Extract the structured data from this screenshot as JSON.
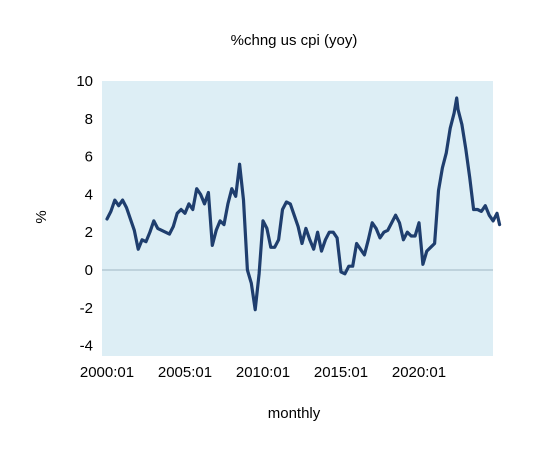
{
  "chart_data": {
    "type": "line",
    "title": "%chng us cpi (yoy)",
    "xlabel": "monthly",
    "ylabel": "%",
    "ylim": [
      -4.5,
      10
    ],
    "xlim": [
      "2000:01",
      "2025:03"
    ],
    "y_ticks": [
      "10",
      "8",
      "6",
      "4",
      "2",
      "0",
      "-2",
      "-4"
    ],
    "x_ticks": [
      "2000:01",
      "2005:01",
      "2010:01",
      "2015:01",
      "2020:01"
    ],
    "grid": false,
    "legend": "none",
    "background_color": "#ddeef5",
    "line_color": "#1f3e6e",
    "zero_line_color": "#9fb6c2",
    "series": [
      {
        "x": [
          "2000:01",
          "2000:04",
          "2000:07",
          "2000:10",
          "2001:01",
          "2001:04",
          "2001:07",
          "2001:10",
          "2002:01",
          "2002:04",
          "2002:07",
          "2002:10",
          "2003:01",
          "2003:04",
          "2003:07",
          "2003:10",
          "2004:01",
          "2004:04",
          "2004:07",
          "2004:10",
          "2005:01",
          "2005:04",
          "2005:07",
          "2005:10",
          "2006:01",
          "2006:04",
          "2006:07",
          "2006:10",
          "2007:01",
          "2007:04",
          "2007:07",
          "2007:10",
          "2008:01",
          "2008:04",
          "2008:07",
          "2008:10",
          "2009:01",
          "2009:04",
          "2009:07",
          "2009:10",
          "2010:01",
          "2010:04",
          "2010:07",
          "2010:10",
          "2011:01",
          "2011:04",
          "2011:07",
          "2011:10",
          "2012:01",
          "2012:04",
          "2012:07",
          "2012:10",
          "2013:01",
          "2013:04",
          "2013:07",
          "2013:10",
          "2014:01",
          "2014:04",
          "2014:07",
          "2014:10",
          "2015:01",
          "2015:04",
          "2015:07",
          "2015:10",
          "2016:01",
          "2016:04",
          "2016:07",
          "2016:10",
          "2017:01",
          "2017:04",
          "2017:07",
          "2017:10",
          "2018:01",
          "2018:04",
          "2018:07",
          "2018:10",
          "2019:01",
          "2019:04",
          "2019:07",
          "2019:10",
          "2020:01",
          "2020:04",
          "2020:07",
          "2020:10",
          "2021:01",
          "2021:04",
          "2021:07",
          "2021:10",
          "2022:01",
          "2022:04",
          "2022:06",
          "2022:07",
          "2022:10",
          "2023:01",
          "2023:04",
          "2023:07",
          "2023:10",
          "2024:01",
          "2024:04",
          "2024:07",
          "2024:10",
          "2025:01",
          "2025:03"
        ],
        "values": [
          2.7,
          3.1,
          3.7,
          3.4,
          3.7,
          3.3,
          2.7,
          2.1,
          1.1,
          1.6,
          1.5,
          2.0,
          2.6,
          2.2,
          2.1,
          2.0,
          1.9,
          2.3,
          3.0,
          3.2,
          3.0,
          3.5,
          3.2,
          4.3,
          4.0,
          3.5,
          4.1,
          1.3,
          2.1,
          2.6,
          2.4,
          3.5,
          4.3,
          3.9,
          5.6,
          3.7,
          0.0,
          -0.7,
          -2.1,
          -0.2,
          2.6,
          2.2,
          1.2,
          1.2,
          1.6,
          3.2,
          3.6,
          3.5,
          2.9,
          2.3,
          1.4,
          2.2,
          1.6,
          1.1,
          2.0,
          1.0,
          1.6,
          2.0,
          2.0,
          1.7,
          -0.1,
          -0.2,
          0.2,
          0.2,
          1.4,
          1.1,
          0.8,
          1.6,
          2.5,
          2.2,
          1.7,
          2.0,
          2.1,
          2.5,
          2.9,
          2.5,
          1.6,
          2.0,
          1.8,
          1.8,
          2.5,
          0.3,
          1.0,
          1.2,
          1.4,
          4.2,
          5.4,
          6.2,
          7.5,
          8.3,
          9.1,
          8.5,
          7.7,
          6.4,
          4.9,
          3.2,
          3.2,
          3.1,
          3.4,
          2.9,
          2.6,
          3.0,
          2.4
        ]
      }
    ]
  }
}
